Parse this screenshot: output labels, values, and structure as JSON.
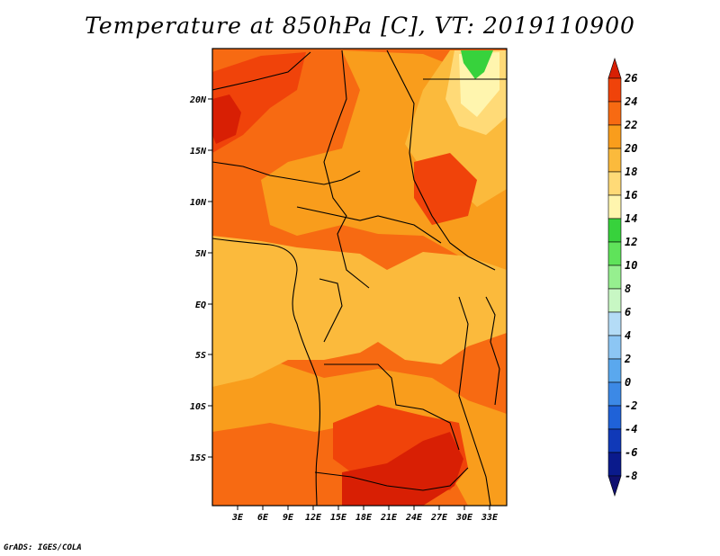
{
  "title": "Temperature at 850hPa [C], VT: 2019110900",
  "credit": "GrADS: IGES/COLA",
  "map": {
    "lon_range": [
      0,
      35
    ],
    "lat_range": [
      -20,
      25
    ],
    "lon_ticks": [
      "3E",
      "6E",
      "9E",
      "12E",
      "15E",
      "18E",
      "21E",
      "24E",
      "27E",
      "30E",
      "33E"
    ],
    "lat_ticks": [
      "20N",
      "15N",
      "10N",
      "5N",
      "EQ",
      "5S",
      "10S",
      "15S"
    ],
    "palette": {
      "t26": "#d81f04",
      "t24": "#f0430a",
      "t22": "#f76a12",
      "t20": "#f99d1c",
      "t18": "#fbba3c",
      "t16": "#ffda77",
      "t14": "#fff5ae",
      "t12": "#37d23c"
    }
  },
  "colorbar": {
    "labels": [
      "26",
      "24",
      "22",
      "20",
      "18",
      "16",
      "14",
      "12",
      "10",
      "8",
      "6",
      "4",
      "2",
      "0",
      "-2",
      "-4",
      "-6",
      "-8"
    ],
    "colors": [
      "#d81f04",
      "#f0430a",
      "#f76a12",
      "#f99d1c",
      "#fbba3c",
      "#ffda77",
      "#fff5ae",
      "#37d23c",
      "#5fe35a",
      "#96ef8f",
      "#c8f7c4",
      "#b4dcf6",
      "#8cc6f4",
      "#5aa8ee",
      "#3c89e6",
      "#1f62d8",
      "#1039b8",
      "#0a1a8c",
      "#101070"
    ]
  }
}
